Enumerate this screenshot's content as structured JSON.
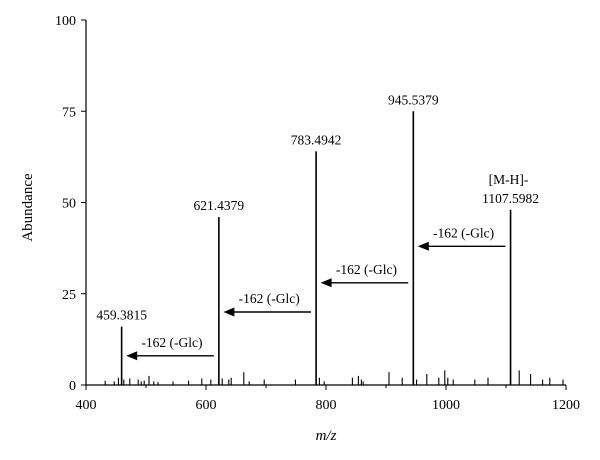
{
  "chart_data": {
    "type": "bar",
    "title": "",
    "xlabel": "m/z",
    "ylabel": "Abundance",
    "xlim": [
      400,
      1200
    ],
    "ylim": [
      0,
      100
    ],
    "xticks": [
      400,
      600,
      800,
      1000,
      1200
    ],
    "yticks": [
      0,
      25,
      50,
      75,
      100
    ],
    "grid": false,
    "major_peaks": [
      {
        "x": 459.3815,
        "y": 16,
        "label": "459.3815"
      },
      {
        "x": 621.4379,
        "y": 46,
        "label": "621.4379"
      },
      {
        "x": 783.4942,
        "y": 64,
        "label": "783.4942"
      },
      {
        "x": 945.5379,
        "y": 75,
        "label": "945.5379"
      },
      {
        "x": 1107.5982,
        "y": 48,
        "label": "1107.5982",
        "label_top": "[M-H]-"
      }
    ],
    "minor_peaks": [
      {
        "x": 432,
        "y": 1.2
      },
      {
        "x": 447,
        "y": 1.0
      },
      {
        "x": 454,
        "y": 2.0
      },
      {
        "x": 463,
        "y": 1.5
      },
      {
        "x": 473,
        "y": 1.8
      },
      {
        "x": 487,
        "y": 1.5
      },
      {
        "x": 492,
        "y": 1.0
      },
      {
        "x": 497,
        "y": 1.2
      },
      {
        "x": 505,
        "y": 2.5
      },
      {
        "x": 513,
        "y": 1.0
      },
      {
        "x": 520,
        "y": 0.8
      },
      {
        "x": 545,
        "y": 1.0
      },
      {
        "x": 571,
        "y": 1.2
      },
      {
        "x": 593,
        "y": 1.8
      },
      {
        "x": 608,
        "y": 1.5
      },
      {
        "x": 627,
        "y": 1.8
      },
      {
        "x": 638,
        "y": 1.5
      },
      {
        "x": 642,
        "y": 2.0
      },
      {
        "x": 663,
        "y": 3.5
      },
      {
        "x": 672,
        "y": 1.0
      },
      {
        "x": 697,
        "y": 1.5
      },
      {
        "x": 749,
        "y": 1.5
      },
      {
        "x": 789,
        "y": 2.0
      },
      {
        "x": 797,
        "y": 1.0
      },
      {
        "x": 844,
        "y": 2.0
      },
      {
        "x": 854,
        "y": 2.5
      },
      {
        "x": 859,
        "y": 1.5
      },
      {
        "x": 862,
        "y": 1.0
      },
      {
        "x": 905,
        "y": 3.5
      },
      {
        "x": 927,
        "y": 2.0
      },
      {
        "x": 951,
        "y": 1.5
      },
      {
        "x": 968,
        "y": 3.0
      },
      {
        "x": 988,
        "y": 2.0
      },
      {
        "x": 998,
        "y": 4.0
      },
      {
        "x": 1003,
        "y": 2.0
      },
      {
        "x": 1012,
        "y": 1.5
      },
      {
        "x": 1048,
        "y": 1.5
      },
      {
        "x": 1070,
        "y": 2.0
      },
      {
        "x": 1122,
        "y": 4.0
      },
      {
        "x": 1141,
        "y": 3.0
      },
      {
        "x": 1161,
        "y": 1.5
      },
      {
        "x": 1173,
        "y": 2.0
      },
      {
        "x": 1195,
        "y": 1.5
      }
    ],
    "annotations": [
      {
        "text": "-162 (-Glc)",
        "from_x": 613,
        "to_x": 467,
        "y": 8
      },
      {
        "text": "-162 (-Glc)",
        "from_x": 775,
        "to_x": 629,
        "y": 20
      },
      {
        "text": "-162 (-Glc)",
        "from_x": 937,
        "to_x": 791,
        "y": 28
      },
      {
        "text": "-162 (-Glc)",
        "from_x": 1099,
        "to_x": 953,
        "y": 38
      }
    ]
  }
}
